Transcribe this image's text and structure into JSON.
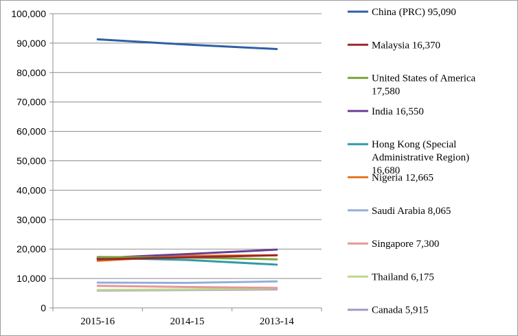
{
  "chart_data": {
    "type": "line",
    "title": "",
    "xlabel": "",
    "ylabel": "",
    "categories": [
      "2015-16",
      "2014-15",
      "2013-14"
    ],
    "ylim": [
      0,
      100000
    ],
    "yticks": [
      0,
      10000,
      20000,
      30000,
      40000,
      50000,
      60000,
      70000,
      80000,
      90000,
      100000
    ],
    "ytick_labels": [
      "0",
      "10,000",
      "20,000",
      "30,000",
      "40,000",
      "50,000",
      "60,000",
      "70,000",
      "80,000",
      "90,000",
      "100,000"
    ],
    "grid": "horizontal",
    "legend_position": "right",
    "series": [
      {
        "name": "China (PRC)  95,090",
        "color": "#2E5FA3",
        "values": [
          91300,
          89500,
          88000
        ]
      },
      {
        "name": "Malaysia  16,370",
        "color": "#A0262A",
        "values": [
          16500,
          17200,
          17900
        ]
      },
      {
        "name": "United States of America  17,580",
        "color": "#7DA53C",
        "values": [
          17300,
          17100,
          16500
        ]
      },
      {
        "name": "India  16,550",
        "color": "#6A3E95",
        "values": [
          16900,
          18300,
          19800
        ]
      },
      {
        "name": "Hong Kong (Special Administrative Region)  16,680",
        "color": "#2D9AA8",
        "values": [
          17000,
          16300,
          14700
        ]
      },
      {
        "name": "Nigeria  12,665",
        "color": "#E87722",
        "values": [
          16000,
          17700,
          17900
        ]
      },
      {
        "name": "Saudi Arabia  8,065",
        "color": "#94AEDB",
        "values": [
          8600,
          8500,
          9000
        ]
      },
      {
        "name": "Singapore  7,300",
        "color": "#E39896",
        "values": [
          7500,
          7100,
          6800
        ]
      },
      {
        "name": "Thailand  6,175",
        "color": "#BDD88D",
        "values": [
          6100,
          6300,
          6600
        ]
      },
      {
        "name": "Canada  5,915",
        "color": "#A697C6",
        "values": [
          5900,
          6100,
          6300
        ]
      }
    ]
  }
}
